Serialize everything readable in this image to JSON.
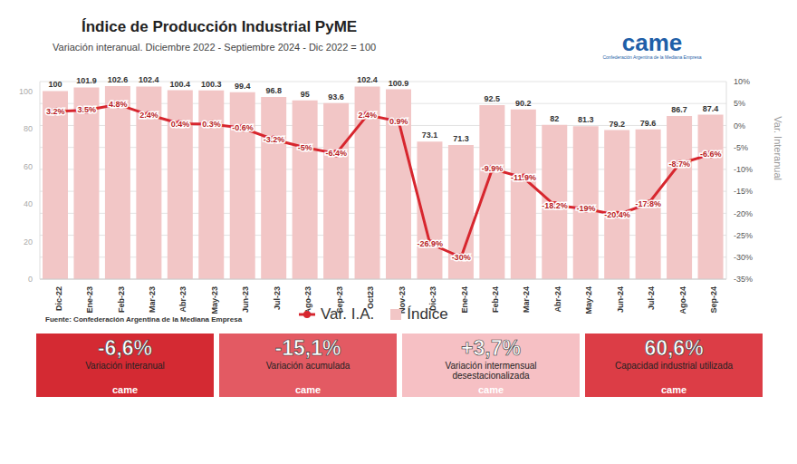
{
  "chart_data": {
    "type": "bar",
    "title": "Índice de Producción Industrial PyME",
    "subtitle": "Variación interanual. Diciembre 2022 - Septiembre 2024 - Dic 2022 = 100",
    "source": "Fuente: Confederación Argentina de la Mediana Empresa",
    "categories": [
      "Dic-22",
      "Ene-23",
      "Feb-23",
      "Mar-23",
      "Abr-23",
      "May-23",
      "Jun-23",
      "Jul-23",
      "Ago-23",
      "Sep-23",
      "Oct23",
      "Nov-23",
      "Dic-23",
      "Ene-24",
      "Feb-24",
      "Mar-24",
      "Abr-24",
      "May-24",
      "Jun-24",
      "Jul-24",
      "Ago-24",
      "Sep-24"
    ],
    "series": [
      {
        "name": "Var. I.A.",
        "type": "line",
        "color": "#d7262e",
        "marker": "circle",
        "axis": "y2",
        "values": [
          3.2,
          3.5,
          4.8,
          2.4,
          0.4,
          0.3,
          -0.6,
          -3.2,
          -5,
          -6.4,
          2.4,
          0.9,
          -26.9,
          -30,
          -9.9,
          -11.9,
          -18.2,
          -19,
          -20.4,
          -17.8,
          -8.7,
          -6.6
        ],
        "value_labels": [
          "3.2%",
          "3.5%",
          "4.8%",
          "2.4%",
          "0.4%",
          "0.3%",
          "-0.6%",
          "-3.2%",
          "-5%",
          "-6.4%",
          "2.4%",
          "0.9%",
          "-26.9%",
          "-30%",
          "-9.9%",
          "-11.9%",
          "-18.2%",
          "-19%",
          "-20.4%",
          "-17.8%",
          "-8.7%",
          "-6.6%"
        ]
      },
      {
        "name": "Índice",
        "type": "bar",
        "color": "#f2c6c6",
        "values": [
          100,
          101.9,
          102.6,
          102.4,
          100.4,
          100.3,
          99.4,
          96.8,
          95,
          93.6,
          102.4,
          100.9,
          73.1,
          71.3,
          92.5,
          90.2,
          82,
          81.3,
          79.2,
          79.6,
          86.7,
          87.4
        ]
      }
    ],
    "ylim": [
      0,
      105
    ],
    "yticks": [
      0,
      20,
      40,
      60,
      80,
      100
    ],
    "y2lim": [
      -35,
      10
    ],
    "y2ticks": [
      {
        "value": -35,
        "label": "-35%"
      },
      {
        "value": -30,
        "label": "-30%"
      },
      {
        "value": -25,
        "label": "-25%"
      },
      {
        "value": -20,
        "label": "-20%"
      },
      {
        "value": -15,
        "label": "-15%"
      },
      {
        "value": -10,
        "label": "-10%"
      },
      {
        "value": -5,
        "label": "-5%"
      },
      {
        "value": 0,
        "label": "0%"
      },
      {
        "value": 5,
        "label": "5%"
      },
      {
        "value": 10,
        "label": "10%"
      }
    ],
    "y2_label": "Var. Interanual",
    "grid": true,
    "data_labels": true,
    "legend": "bottom"
  },
  "logo": {
    "text": "came",
    "caption": "Confederación Argentina de la Mediana Empresa",
    "color": "#1f5fa8"
  },
  "cards": [
    {
      "value": "-6,6%",
      "label": "Variación interanual",
      "color": "#d42a33"
    },
    {
      "value": "-15,1%",
      "label": "Variación acumulada",
      "color": "#e35a63"
    },
    {
      "value": "+3,7%",
      "label": "Variación intermensual desestacionalizada",
      "color": "#f6c0c4"
    },
    {
      "value": "60,6%",
      "label": "Capacidad industrial utilizada",
      "color": "#dc3d46"
    }
  ]
}
